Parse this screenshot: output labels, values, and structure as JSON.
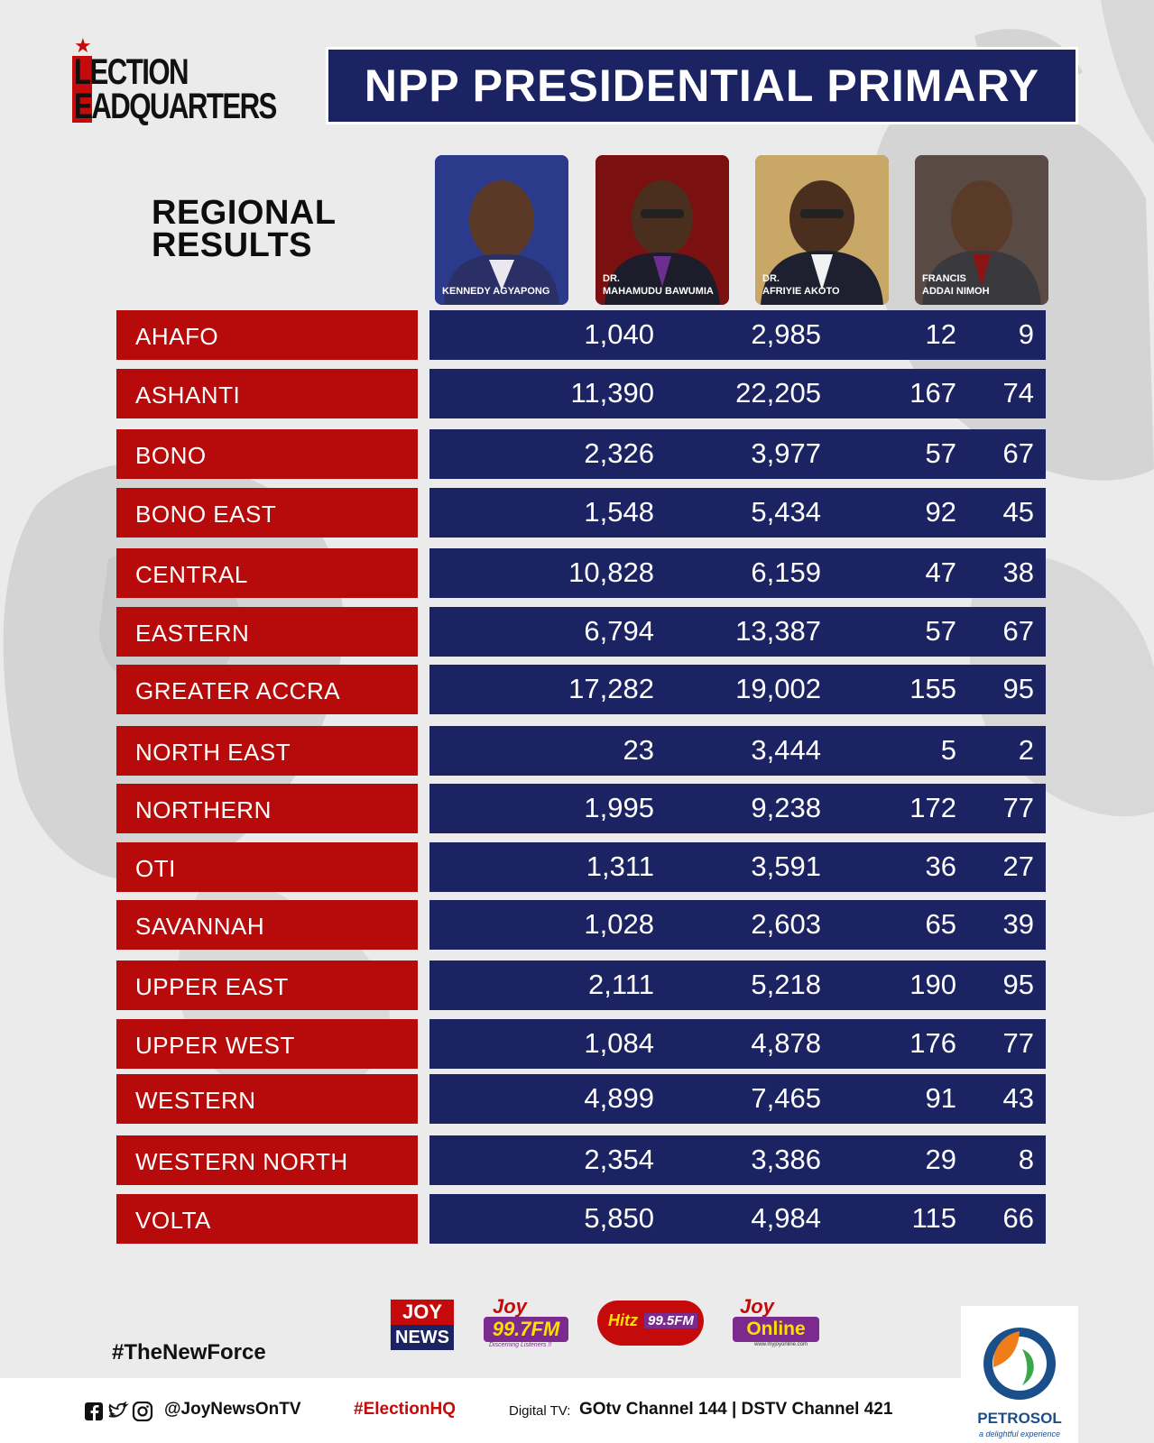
{
  "logo": {
    "line1": "LECTION",
    "line2": "EADQUARTERS"
  },
  "title": "NPP PRESIDENTIAL PRIMARY",
  "subtitle": {
    "line1": "REGIONAL",
    "line2": "RESULTS"
  },
  "candidates": [
    {
      "prefix": "",
      "name": "KENNEDY AGYAPONG"
    },
    {
      "prefix": "DR.",
      "name": "MAHAMUDU BAWUMIA"
    },
    {
      "prefix": "DR.",
      "name": "AFRIYIE AKOTO"
    },
    {
      "prefix": "FRANCIS",
      "name": "ADDAI NIMOH"
    }
  ],
  "rows": [
    {
      "region": "AHAFO",
      "values": [
        "1,040",
        "2,985",
        "12",
        "9"
      ]
    },
    {
      "region": "ASHANTI",
      "values": [
        "11,390",
        "22,205",
        "167",
        "74"
      ]
    },
    {
      "region": "BONO",
      "values": [
        "2,326",
        "3,977",
        "57",
        "67"
      ]
    },
    {
      "region": "BONO EAST",
      "values": [
        "1,548",
        "5,434",
        "92",
        "45"
      ]
    },
    {
      "region": "CENTRAL",
      "values": [
        "10,828",
        "6,159",
        "47",
        "38"
      ]
    },
    {
      "region": "EASTERN",
      "values": [
        "6,794",
        "13,387",
        "57",
        "67"
      ]
    },
    {
      "region": "GREATER ACCRA",
      "values": [
        "17,282",
        "19,002",
        "155",
        "95"
      ]
    },
    {
      "region": "NORTH EAST",
      "values": [
        "23",
        "3,444",
        "5",
        "2"
      ]
    },
    {
      "region": "NORTHERN",
      "values": [
        "1,995",
        "9,238",
        "172",
        "77"
      ]
    },
    {
      "region": "OTI",
      "values": [
        "1,311",
        "3,591",
        "36",
        "27"
      ]
    },
    {
      "region": "SAVANNAH",
      "values": [
        "1,028",
        "2,603",
        "65",
        "39"
      ]
    },
    {
      "region": "UPPER EAST",
      "values": [
        "2,111",
        "5,218",
        "190",
        "95"
      ]
    },
    {
      "region": "UPPER WEST",
      "values": [
        "1,084",
        "4,878",
        "176",
        "77"
      ]
    },
    {
      "region": "WESTERN",
      "values": [
        "4,899",
        "7,465",
        "91",
        "43"
      ]
    },
    {
      "region": "WESTERN NORTH",
      "values": [
        "2,354",
        "3,386",
        "29",
        "8"
      ]
    },
    {
      "region": "VOLTA",
      "values": [
        "5,850",
        "4,984",
        "115",
        "66"
      ]
    }
  ],
  "brands": {
    "joy_news": {
      "top": "JOY",
      "bottom": "NEWS"
    },
    "joy_fm": {
      "top": "Joy",
      "freq": "99.7FM",
      "tagline": "Discerning Listeners !!"
    },
    "hitz_fm": {
      "top": "Hitz",
      "freq": "99.5FM"
    },
    "joy_online": {
      "top": "Joy",
      "name": "Online",
      "url": "www.myjoyonline.com"
    }
  },
  "hashtag": "#TheNewForce",
  "sponsor": {
    "name": "PETROSOL",
    "tagline": "a delightful experience"
  },
  "footer": {
    "handle": "@JoyNewsOnTV",
    "hashtag": "#ElectionHQ",
    "digital_label": "Digital TV:",
    "channels": "GOtv Channel 144  |  DSTV Channel 421"
  },
  "colors": {
    "navy": "#1b2363",
    "red": "#b70b0b",
    "background": "#ebebeb"
  },
  "icons": [
    "facebook-icon",
    "twitter-icon",
    "instagram-icon",
    "star-icon"
  ]
}
